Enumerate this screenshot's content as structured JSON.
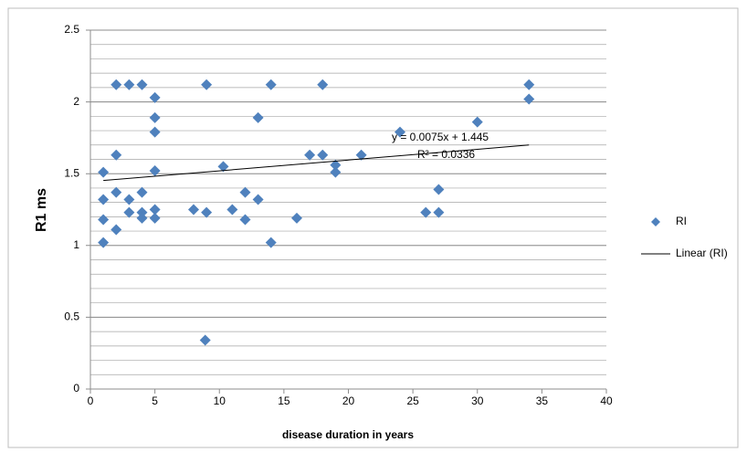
{
  "chart_data": {
    "type": "scatter",
    "x_label": "disease duration  in years",
    "y_label": "R1 ms",
    "series": [
      {
        "name": "RI",
        "color": "#4f81bd",
        "x": [
          1,
          1,
          1,
          1,
          2,
          2,
          2,
          2,
          3,
          3,
          3,
          4,
          4,
          4,
          4,
          5,
          5,
          5,
          5,
          5,
          5,
          8,
          9,
          9,
          8.9,
          10.3,
          11,
          12,
          12,
          13,
          13,
          14,
          14,
          16,
          17,
          18,
          18,
          19,
          19,
          21,
          24,
          26,
          27,
          27,
          30,
          34,
          34
        ],
        "values": [
          1.51,
          1.32,
          1.18,
          1.02,
          2.12,
          1.63,
          1.37,
          1.11,
          2.12,
          1.32,
          1.23,
          2.12,
          1.37,
          1.23,
          1.19,
          2.03,
          1.89,
          1.79,
          1.52,
          1.25,
          1.19,
          1.25,
          2.12,
          1.23,
          0.34,
          1.55,
          1.25,
          1.37,
          1.18,
          1.89,
          1.32,
          2.12,
          1.02,
          1.19,
          1.63,
          2.12,
          1.63,
          1.56,
          1.51,
          1.63,
          1.79,
          1.23,
          1.39,
          1.23,
          1.86,
          2.12,
          2.02
        ]
      }
    ],
    "trendline": {
      "name": "Linear (RI)",
      "color": "#000000",
      "equation": "y = 0.0075x  + 1.445",
      "r2_label": "R² = 0.0336",
      "slope": 0.0075,
      "intercept": 1.445,
      "x": [
        1,
        34
      ]
    },
    "xlim": [
      0,
      40
    ],
    "xticks": [
      0,
      5,
      10,
      15,
      20,
      25,
      30,
      35,
      40
    ],
    "ylim": [
      0,
      2.5
    ],
    "yticks": [
      0,
      0.5,
      1,
      1.5,
      2,
      2.5
    ],
    "grid": true,
    "minor_grid_step": 0.1,
    "legend": "right"
  }
}
